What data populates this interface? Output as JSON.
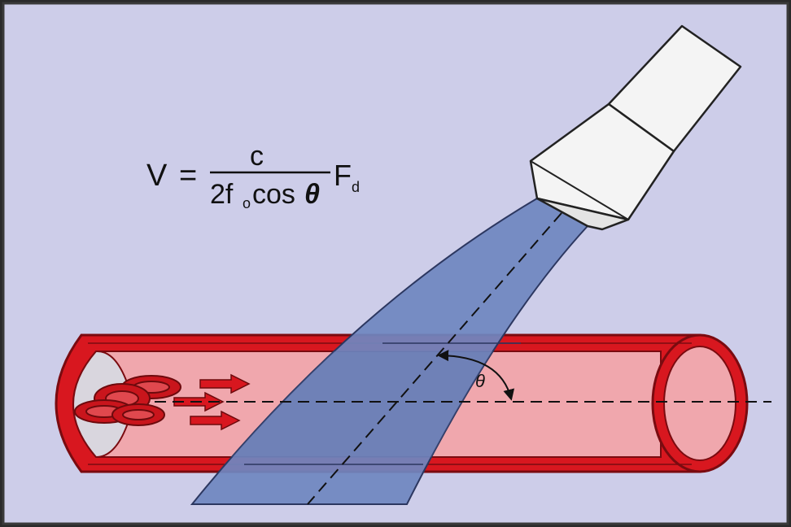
{
  "formula": {
    "lhs": "V",
    "equals": "=",
    "numerator": "c",
    "denominator_coeff": "2f",
    "denominator_sub": "o",
    "denominator_cos": "cos",
    "denominator_theta": "θ",
    "rhs_symbol": "F",
    "rhs_sub": "d"
  },
  "angle_label": "θ",
  "colors": {
    "background": "#cdcde9",
    "vessel_wall": "#d8171f",
    "vessel_lumen": "#f0a7ad",
    "vessel_wall_dark": "#7a0b10",
    "beam": "#6f86bf",
    "probe": "#f4f4f4",
    "cells": "#c9151c"
  }
}
